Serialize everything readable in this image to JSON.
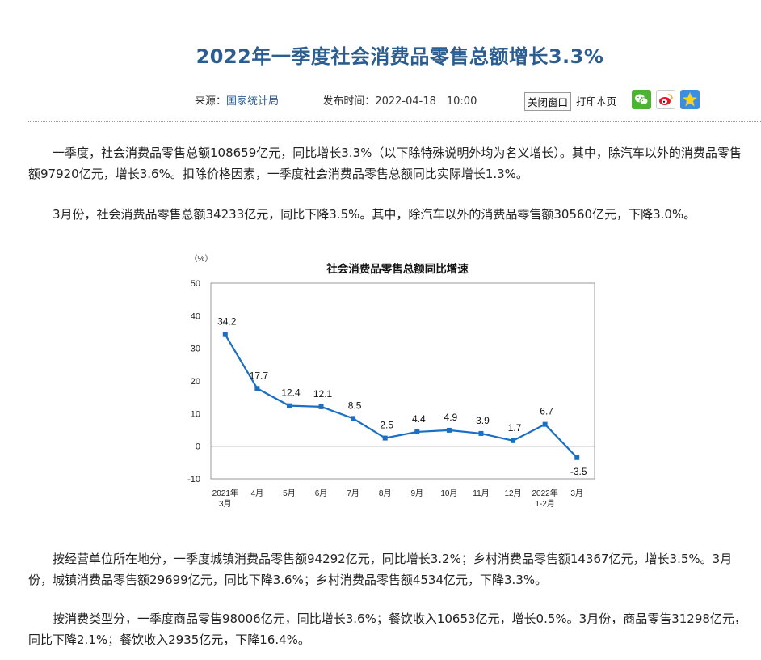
{
  "article": {
    "title": "2022年一季度社会消费品零售总额增长3.3%",
    "source_label": "来源：",
    "source_name": "国家统计局",
    "publish_label": "发布时间：",
    "publish_time": "2022-04-18　10:00",
    "close_window": "关闭窗口",
    "print_page": "打印本页",
    "share_icons": [
      "wechat-icon",
      "weibo-icon",
      "qzone-icon"
    ],
    "paragraphs": [
      "一季度，社会消费品零售总额108659亿元，同比增长3.3%（以下除特殊说明外均为名义增长）。其中，除汽车以外的消费品零售额97920亿元，增长3.6%。扣除价格因素，一季度社会消费品零售总额同比实际增长1.3%。",
      "3月份，社会消费品零售总额34233亿元，同比下降3.5%。其中，除汽车以外的消费品零售额30560亿元，下降3.0%。",
      "按经营单位所在地分，一季度城镇消费品零售额94292亿元，同比增长3.2%；乡村消费品零售额14367亿元，增长3.5%。3月份，城镇消费品零售额29699亿元，同比下降3.6%；乡村消费品零售额4534亿元，下降3.3%。",
      "按消费类型分，一季度商品零售98006亿元，同比增长3.6%；餐饮收入10653亿元，增长0.5%。3月份，商品零售31298亿元，同比下降2.1%；餐饮收入2935亿元，下降16.4%。"
    ]
  },
  "colors": {
    "title": "#2b5d91",
    "series": "#1a6fc4",
    "link": "#2b5d91"
  },
  "chart_data": {
    "type": "line",
    "title": "社会消费品零售总额同比增速",
    "unit": "（%）",
    "categories": [
      [
        "2021年",
        "3月"
      ],
      [
        "4月"
      ],
      [
        "5月"
      ],
      [
        "6月"
      ],
      [
        "7月"
      ],
      [
        "8月"
      ],
      [
        "9月"
      ],
      [
        "10月"
      ],
      [
        "11月"
      ],
      [
        "12月"
      ],
      [
        "2022年",
        "1-2月"
      ],
      [
        "3月"
      ]
    ],
    "series": [
      {
        "values": [
          34.2,
          17.7,
          12.4,
          12.1,
          8.5,
          2.5,
          4.4,
          4.9,
          3.9,
          1.7,
          6.7,
          -3.5
        ]
      }
    ],
    "ylim": [
      -10,
      50
    ],
    "yticks": [
      -10,
      0,
      10,
      20,
      30,
      40,
      50
    ],
    "grid": false,
    "legend": "none"
  }
}
